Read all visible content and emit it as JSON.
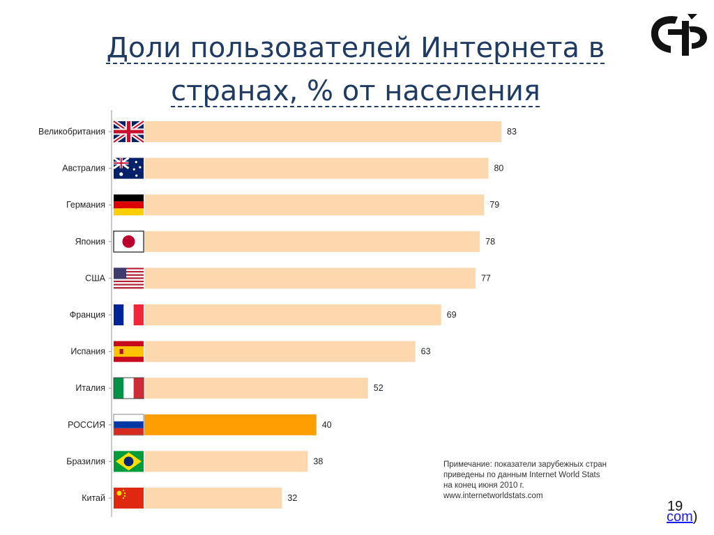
{
  "slide": {
    "title_line1": "Доли пользователей Интернета в",
    "title_line2": "странах, % от населения",
    "note_lines": [
      "Примечание: показатели зарубежных стран",
      "приведены по данным Internet World Stats",
      "на конец июня 2010 г.",
      "www.internetworldstats.com"
    ],
    "slide_number": "19",
    "link_text": "com",
    "link_suffix": ")"
  },
  "colors": {
    "bar": "#fdd7ae",
    "highlight_bar": "#ff9e00",
    "title": "#1f3a63",
    "axis": "#999999"
  },
  "chart_data": {
    "type": "bar",
    "orientation": "horizontal",
    "title": "Доли пользователей Интернета в странах, % от населения",
    "xlabel": "",
    "ylabel": "",
    "xlim": [
      0,
      100
    ],
    "grid": false,
    "categories": [
      "Великобритания",
      "Австралия",
      "Германия",
      "Япония",
      "США",
      "Франция",
      "Испания",
      "Италия",
      "РОССИЯ",
      "Бразилия",
      "Китай"
    ],
    "values": [
      83,
      80,
      79,
      78,
      77,
      69,
      63,
      52,
      40,
      38,
      32
    ],
    "flags": [
      "uk",
      "australia",
      "germany",
      "japan",
      "usa",
      "france",
      "spain",
      "italy",
      "russia",
      "brazil",
      "china"
    ],
    "highlight": "РОССИЯ"
  }
}
